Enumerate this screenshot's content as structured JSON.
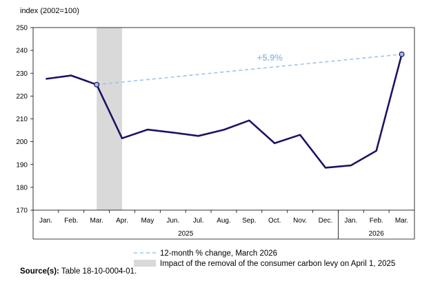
{
  "chart_data": {
    "type": "line",
    "ylabel": "index (2002=100)",
    "ylim": [
      170,
      250
    ],
    "yticks": [
      170,
      180,
      190,
      200,
      210,
      220,
      230,
      240,
      250
    ],
    "categories": [
      "Jan.",
      "Feb.",
      "Mar.",
      "Apr.",
      "May",
      "Jun.",
      "Jul.",
      "Aug.",
      "Sep.",
      "Oct.",
      "Nov.",
      "Dec.",
      "Jan.",
      "Feb.",
      "Mar."
    ],
    "year_groups": [
      {
        "label": "2025",
        "start": 0,
        "end": 11
      },
      {
        "label": "2026",
        "start": 12,
        "end": 14
      }
    ],
    "series": [
      {
        "values": [
          227.5,
          229,
          225,
          201.5,
          205.3,
          204,
          202.5,
          205.2,
          209.3,
          199.3,
          203,
          188.6,
          189.6,
          196,
          238.3
        ],
        "color": "#1a1464"
      }
    ],
    "markers": [
      2,
      14
    ],
    "twelve_month_change": {
      "from_index": 2,
      "to_index": 14,
      "label": "+5.9%",
      "color": "#9dc3e6"
    },
    "shaded_band": {
      "from_index": 2,
      "to_index": 3,
      "color": "#d9d9d9"
    },
    "legend": [
      {
        "type": "dashed-line",
        "label": "12-month % change, March 2026",
        "color": "#9dc3e6"
      },
      {
        "type": "shaded-box",
        "label": "Impact of the removal of the consumer carbon levy on April 1, 2025",
        "color": "#d9d9d9"
      }
    ],
    "grid": "none",
    "legend_placement": "bottom"
  },
  "source": {
    "label": "Source(s):",
    "text": "Table 18-10-0004-01."
  }
}
